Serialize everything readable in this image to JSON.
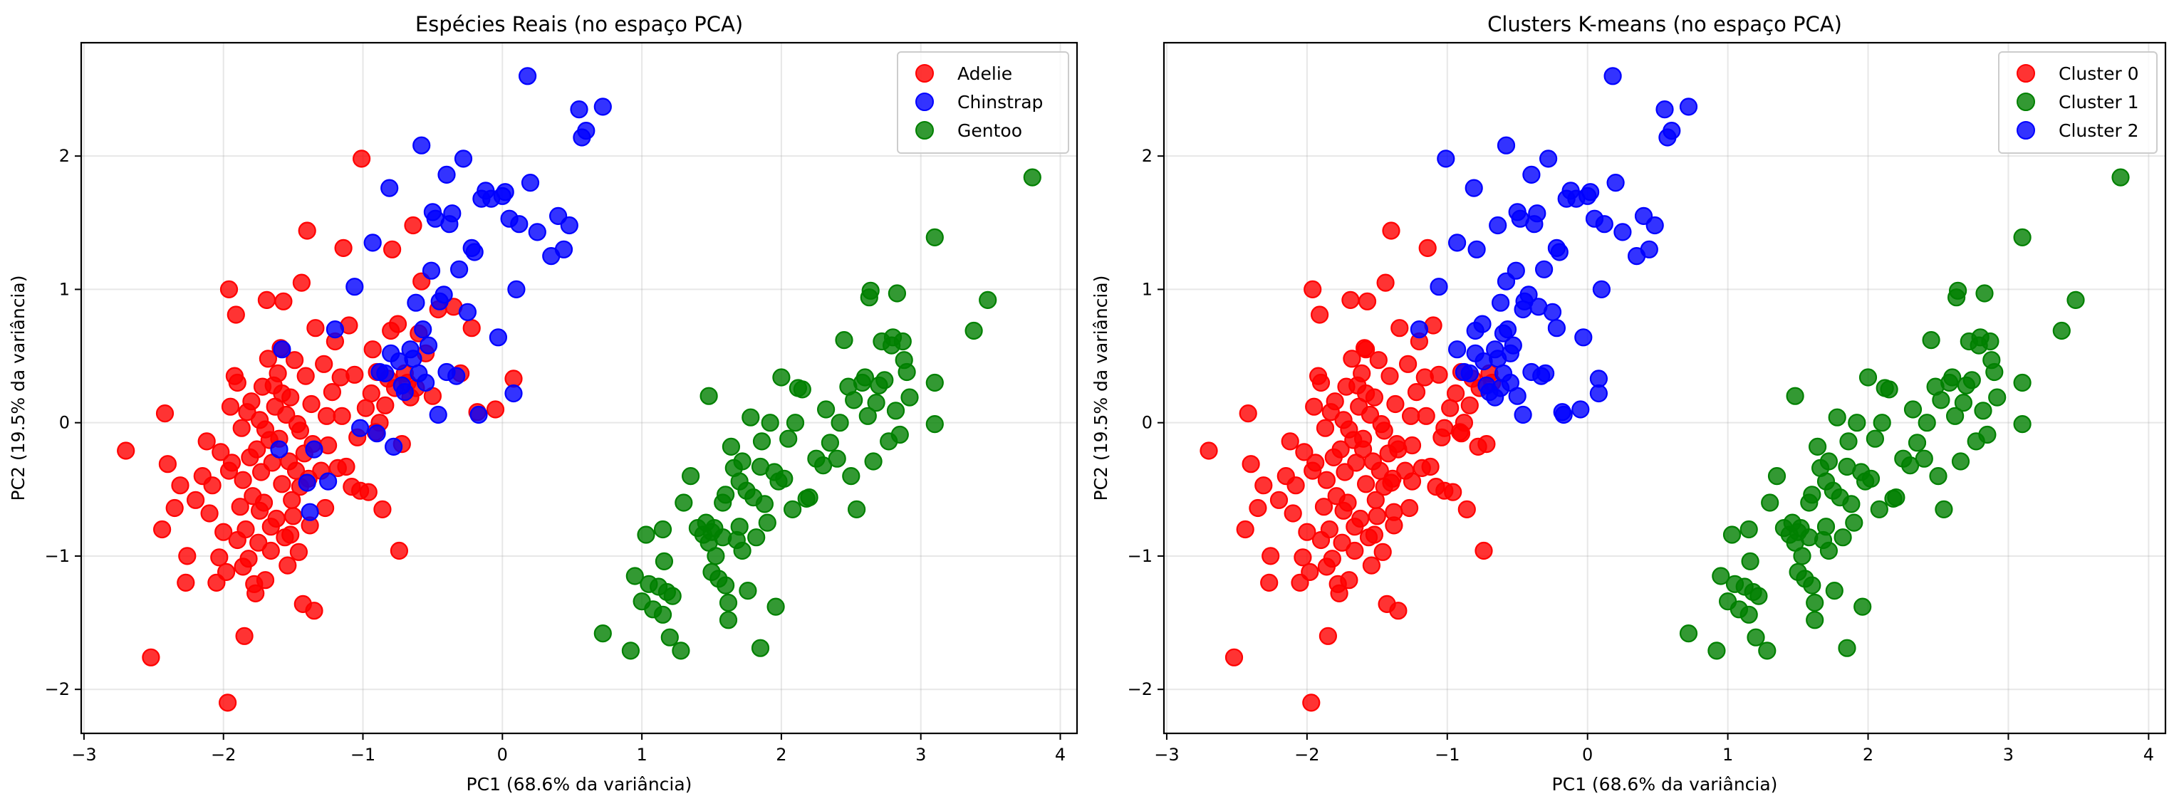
{
  "figure": {
    "description": "Two side-by-side PCA scatter plots of penguin data"
  },
  "chart_data": [
    {
      "type": "scatter",
      "title": "Espécies Reais (no espaço PCA)",
      "xlabel": "PC1 (68.6% da variância)",
      "ylabel": "PC2 (19.5% da variância)",
      "xlim": [
        -3.02,
        4.12
      ],
      "ylim": [
        -2.33,
        2.85
      ],
      "xticks": [
        -3,
        -2,
        -1,
        0,
        1,
        2,
        3,
        4
      ],
      "yticks": [
        -2,
        -1,
        0,
        1,
        2
      ],
      "grid": true,
      "legend_position": "top-right",
      "color_key": "species",
      "legend": [
        {
          "label": "Adelie",
          "key": "A",
          "color": "#ff0000"
        },
        {
          "label": "Chinstrap",
          "key": "C",
          "color": "#0000ff"
        },
        {
          "label": "Gentoo",
          "key": "G",
          "color": "#008000"
        }
      ]
    },
    {
      "type": "scatter",
      "title": "Clusters K-means (no espaço PCA)",
      "xlabel": "PC1 (68.6% da variância)",
      "ylabel": "PC2 (19.5% da variância)",
      "xlim": [
        -3.02,
        4.12
      ],
      "ylim": [
        -2.33,
        2.85
      ],
      "xticks": [
        -3,
        -2,
        -1,
        0,
        1,
        2,
        3,
        4
      ],
      "yticks": [
        -2,
        -1,
        0,
        1,
        2
      ],
      "grid": true,
      "legend_position": "top-right",
      "color_key": "cluster",
      "legend": [
        {
          "label": "Cluster 0",
          "key": 0,
          "color": "#ff0000"
        },
        {
          "label": "Cluster 1",
          "key": 1,
          "color": "#008000"
        },
        {
          "label": "Cluster 2",
          "key": 2,
          "color": "#0000ff"
        }
      ]
    }
  ],
  "points": [
    [
      -2.7,
      -0.21,
      "A",
      0
    ],
    [
      -2.52,
      -1.76,
      "A",
      0
    ],
    [
      -2.44,
      -0.8,
      "A",
      0
    ],
    [
      -2.42,
      0.07,
      "A",
      0
    ],
    [
      -2.4,
      -0.31,
      "A",
      0
    ],
    [
      -2.35,
      -0.64,
      "A",
      0
    ],
    [
      -2.31,
      -0.47,
      "A",
      0
    ],
    [
      -2.27,
      -1.2,
      "A",
      0
    ],
    [
      -2.26,
      -1.0,
      "A",
      0
    ],
    [
      -2.2,
      -0.58,
      "A",
      0
    ],
    [
      -2.15,
      -0.4,
      "A",
      0
    ],
    [
      -2.12,
      -0.14,
      "A",
      0
    ],
    [
      -2.08,
      -0.47,
      "A",
      0
    ],
    [
      -2.05,
      -1.2,
      "A",
      0
    ],
    [
      -2.03,
      -1.01,
      "A",
      0
    ],
    [
      -2.02,
      -0.22,
      "A",
      0
    ],
    [
      -2.0,
      -0.82,
      "A",
      0
    ],
    [
      -1.98,
      -1.12,
      "A",
      0
    ],
    [
      -1.97,
      -2.1,
      "A",
      0
    ],
    [
      -1.96,
      1.0,
      "A",
      0
    ],
    [
      -1.95,
      0.12,
      "A",
      0
    ],
    [
      -1.94,
      -0.3,
      "A",
      0
    ],
    [
      -1.92,
      0.35,
      "A",
      0
    ],
    [
      -1.91,
      0.81,
      "A",
      0
    ],
    [
      -1.9,
      -0.88,
      "A",
      0
    ],
    [
      -1.88,
      -0.63,
      "A",
      0
    ],
    [
      -1.87,
      -0.04,
      "A",
      0
    ],
    [
      -1.86,
      -0.43,
      "A",
      0
    ],
    [
      -1.85,
      -1.6,
      "A",
      0
    ],
    [
      -1.84,
      -0.8,
      "A",
      0
    ],
    [
      -1.83,
      0.08,
      "A",
      0
    ],
    [
      -1.82,
      -1.02,
      "A",
      0
    ],
    [
      -1.81,
      -0.26,
      "A",
      0
    ],
    [
      -1.8,
      0.16,
      "A",
      0
    ],
    [
      -1.79,
      -0.55,
      "A",
      0
    ],
    [
      -1.78,
      -1.21,
      "A",
      0
    ],
    [
      -1.77,
      -1.28,
      "A",
      0
    ],
    [
      -1.76,
      -0.2,
      "A",
      0
    ],
    [
      -1.75,
      -0.9,
      "A",
      0
    ],
    [
      -1.74,
      0.02,
      "A",
      0
    ],
    [
      -1.73,
      -0.37,
      "A",
      0
    ],
    [
      -1.72,
      0.27,
      "A",
      0
    ],
    [
      -1.71,
      -0.6,
      "A",
      0
    ],
    [
      -1.7,
      -0.05,
      "A",
      0
    ],
    [
      -1.69,
      0.92,
      "A",
      0
    ],
    [
      -1.68,
      0.48,
      "A",
      0
    ],
    [
      -1.67,
      -0.13,
      "A",
      0
    ],
    [
      -1.66,
      -0.96,
      "A",
      0
    ],
    [
      -1.65,
      -0.3,
      "A",
      0
    ],
    [
      -1.64,
      0.28,
      "A",
      0
    ],
    [
      -1.63,
      0.12,
      "A",
      0
    ],
    [
      -1.62,
      -0.72,
      "A",
      0
    ],
    [
      -1.61,
      0.37,
      "A",
      0
    ],
    [
      -1.6,
      -0.12,
      "A",
      0
    ],
    [
      -1.59,
      0.56,
      "A",
      0
    ],
    [
      -1.58,
      -0.46,
      "A",
      0
    ],
    [
      -1.57,
      0.91,
      "A",
      0
    ],
    [
      -1.56,
      -0.86,
      "A",
      0
    ],
    [
      -1.55,
      0.06,
      "A",
      0
    ],
    [
      -1.54,
      -1.07,
      "A",
      0
    ],
    [
      -1.53,
      -0.29,
      "A",
      0
    ],
    [
      -1.52,
      0.19,
      "A",
      0
    ],
    [
      -1.51,
      -0.58,
      "A",
      0
    ],
    [
      -1.5,
      -0.7,
      "A",
      0
    ],
    [
      -1.49,
      0.47,
      "A",
      0
    ],
    [
      -1.48,
      -0.36,
      "A",
      0
    ],
    [
      -1.47,
      -0.01,
      "A",
      0
    ],
    [
      -1.46,
      -0.97,
      "A",
      0
    ],
    [
      -1.45,
      -0.48,
      "A",
      0
    ],
    [
      -1.44,
      1.05,
      "A",
      0
    ],
    [
      -1.43,
      -1.36,
      "A",
      0
    ],
    [
      -1.42,
      -0.23,
      "A",
      0
    ],
    [
      -1.41,
      0.35,
      "A",
      0
    ],
    [
      -1.4,
      1.44,
      "A",
      0
    ],
    [
      -1.39,
      -0.42,
      "A",
      0
    ],
    [
      -1.38,
      -0.77,
      "A",
      0
    ],
    [
      -1.37,
      0.14,
      "A",
      0
    ],
    [
      -1.36,
      -0.16,
      "A",
      0
    ],
    [
      -1.35,
      -1.41,
      "A",
      0
    ],
    [
      -1.34,
      0.71,
      "A",
      0
    ],
    [
      -1.3,
      -0.36,
      "A",
      0
    ],
    [
      -1.28,
      0.44,
      "A",
      0
    ],
    [
      -1.27,
      -0.64,
      "A",
      0
    ],
    [
      -1.26,
      0.05,
      "A",
      0
    ],
    [
      -1.25,
      -0.17,
      "A",
      0
    ],
    [
      -1.22,
      0.23,
      "A",
      0
    ],
    [
      -1.2,
      0.61,
      "A",
      0
    ],
    [
      -1.18,
      -0.34,
      "A",
      0
    ],
    [
      -1.16,
      0.34,
      "A",
      0
    ],
    [
      -1.15,
      0.05,
      "A",
      0
    ],
    [
      -1.14,
      1.31,
      "A",
      0
    ],
    [
      -1.12,
      -0.33,
      "A",
      0
    ],
    [
      -1.1,
      0.73,
      "A",
      0
    ],
    [
      -1.08,
      -0.48,
      "A",
      0
    ],
    [
      -1.06,
      0.36,
      "A",
      0
    ],
    [
      -1.04,
      -0.11,
      "A",
      0
    ],
    [
      -1.02,
      -0.51,
      "A",
      0
    ],
    [
      -1.01,
      1.98,
      "A",
      2
    ],
    [
      -0.98,
      0.11,
      "A",
      0
    ],
    [
      -0.96,
      -0.52,
      "A",
      0
    ],
    [
      -0.94,
      0.22,
      "A",
      0
    ],
    [
      -0.93,
      0.55,
      "A",
      2
    ],
    [
      -0.91,
      -0.07,
      "A",
      0
    ],
    [
      -0.9,
      0.38,
      "A",
      0
    ],
    [
      -0.88,
      0.0,
      "A",
      0
    ],
    [
      -0.86,
      -0.65,
      "A",
      0
    ],
    [
      -0.84,
      0.13,
      "A",
      0
    ],
    [
      -0.82,
      0.33,
      "A",
      0
    ],
    [
      -0.8,
      0.69,
      "A",
      2
    ],
    [
      -0.79,
      1.3,
      "A",
      2
    ],
    [
      -0.77,
      0.26,
      "A",
      0
    ],
    [
      -0.75,
      0.74,
      "A",
      2
    ],
    [
      -0.74,
      -0.96,
      "A",
      0
    ],
    [
      -0.72,
      -0.16,
      "A",
      0
    ],
    [
      -0.7,
      0.37,
      "A",
      0
    ],
    [
      -0.68,
      0.3,
      "A",
      0
    ],
    [
      -0.66,
      0.19,
      "A",
      2
    ],
    [
      -0.64,
      1.48,
      "A",
      2
    ],
    [
      -0.62,
      0.26,
      "A",
      2
    ],
    [
      -0.6,
      0.67,
      "A",
      2
    ],
    [
      -0.58,
      1.06,
      "A",
      2
    ],
    [
      -0.55,
      0.52,
      "A",
      2
    ],
    [
      -0.5,
      0.2,
      "A",
      2
    ],
    [
      -0.46,
      0.85,
      "A",
      2
    ],
    [
      -0.35,
      0.87,
      "A",
      2
    ],
    [
      -0.3,
      0.37,
      "A",
      2
    ],
    [
      -0.22,
      0.71,
      "A",
      2
    ],
    [
      -0.18,
      0.08,
      "A",
      2
    ],
    [
      -0.05,
      0.1,
      "A",
      2
    ],
    [
      0.08,
      0.33,
      "A",
      2
    ],
    [
      -1.9,
      0.3,
      "A",
      0
    ],
    [
      -1.58,
      0.22,
      "A",
      0
    ],
    [
      -1.74,
      -0.66,
      "A",
      0
    ],
    [
      -1.66,
      -0.78,
      "A",
      0
    ],
    [
      -1.86,
      -1.08,
      "A",
      0
    ],
    [
      -1.52,
      -0.84,
      "A",
      0
    ],
    [
      -1.45,
      -0.06,
      "A",
      0
    ],
    [
      -2.1,
      -0.68,
      "A",
      0
    ],
    [
      -1.96,
      -0.36,
      "A",
      0
    ],
    [
      -1.7,
      -1.18,
      "A",
      0
    ],
    [
      -1.58,
      0.55,
      "C",
      0
    ],
    [
      -1.6,
      -0.2,
      "C",
      0
    ],
    [
      -1.4,
      -0.45,
      "C",
      0
    ],
    [
      -1.38,
      -0.67,
      "C",
      0
    ],
    [
      -1.25,
      -0.44,
      "C",
      0
    ],
    [
      -1.35,
      -0.2,
      "C",
      0
    ],
    [
      -1.2,
      0.7,
      "C",
      2
    ],
    [
      -1.06,
      1.02,
      "C",
      2
    ],
    [
      -1.02,
      -0.04,
      "C",
      0
    ],
    [
      -0.93,
      1.35,
      "C",
      2
    ],
    [
      -0.9,
      -0.08,
      "C",
      0
    ],
    [
      -0.84,
      0.37,
      "C",
      2
    ],
    [
      -0.81,
      1.76,
      "C",
      2
    ],
    [
      -0.8,
      0.52,
      "C",
      2
    ],
    [
      -0.78,
      -0.18,
      "C",
      0
    ],
    [
      -0.74,
      0.46,
      "C",
      2
    ],
    [
      -0.72,
      0.28,
      "C",
      2
    ],
    [
      -0.7,
      0.23,
      "C",
      2
    ],
    [
      -0.66,
      0.55,
      "C",
      2
    ],
    [
      -0.64,
      0.48,
      "C",
      2
    ],
    [
      -0.6,
      0.37,
      "C",
      2
    ],
    [
      -0.58,
      2.08,
      "C",
      2
    ],
    [
      -0.57,
      0.7,
      "C",
      2
    ],
    [
      -0.55,
      0.3,
      "C",
      2
    ],
    [
      -0.53,
      0.58,
      "C",
      2
    ],
    [
      -0.51,
      1.14,
      "C",
      2
    ],
    [
      -0.5,
      1.58,
      "C",
      2
    ],
    [
      -0.48,
      1.53,
      "C",
      2
    ],
    [
      -0.46,
      0.06,
      "C",
      2
    ],
    [
      -0.45,
      0.91,
      "C",
      2
    ],
    [
      -0.42,
      0.96,
      "C",
      2
    ],
    [
      -0.4,
      1.86,
      "C",
      2
    ],
    [
      -0.38,
      1.49,
      "C",
      2
    ],
    [
      -0.36,
      1.57,
      "C",
      2
    ],
    [
      -0.33,
      0.35,
      "C",
      2
    ],
    [
      -0.31,
      1.15,
      "C",
      2
    ],
    [
      -0.28,
      1.98,
      "C",
      2
    ],
    [
      -0.25,
      0.83,
      "C",
      2
    ],
    [
      -0.22,
      1.31,
      "C",
      2
    ],
    [
      -0.2,
      1.28,
      "C",
      2
    ],
    [
      -0.17,
      0.06,
      "C",
      2
    ],
    [
      -0.15,
      1.68,
      "C",
      2
    ],
    [
      -0.12,
      1.74,
      "C",
      2
    ],
    [
      -0.08,
      1.68,
      "C",
      2
    ],
    [
      -0.03,
      0.64,
      "C",
      2
    ],
    [
      0.0,
      1.7,
      "C",
      2
    ],
    [
      0.02,
      1.73,
      "C",
      2
    ],
    [
      0.05,
      1.53,
      "C",
      2
    ],
    [
      0.08,
      0.22,
      "C",
      2
    ],
    [
      0.1,
      1.0,
      "C",
      2
    ],
    [
      0.12,
      1.49,
      "C",
      2
    ],
    [
      0.2,
      1.8,
      "C",
      2
    ],
    [
      0.25,
      1.43,
      "C",
      2
    ],
    [
      0.35,
      1.25,
      "C",
      2
    ],
    [
      0.4,
      1.55,
      "C",
      2
    ],
    [
      0.44,
      1.3,
      "C",
      2
    ],
    [
      0.48,
      1.48,
      "C",
      2
    ],
    [
      0.18,
      2.6,
      "C",
      2
    ],
    [
      0.55,
      2.35,
      "C",
      2
    ],
    [
      0.57,
      2.14,
      "C",
      2
    ],
    [
      0.6,
      2.19,
      "C",
      2
    ],
    [
      0.72,
      2.37,
      "C",
      2
    ],
    [
      -0.62,
      0.9,
      "C",
      2
    ],
    [
      -0.4,
      0.38,
      "C",
      2
    ],
    [
      -0.88,
      0.38,
      "C",
      2
    ],
    [
      0.72,
      -1.58,
      "G",
      1
    ],
    [
      0.92,
      -1.71,
      "G",
      1
    ],
    [
      0.95,
      -1.15,
      "G",
      1
    ],
    [
      1.0,
      -1.34,
      "G",
      1
    ],
    [
      1.03,
      -0.84,
      "G",
      1
    ],
    [
      1.05,
      -1.21,
      "G",
      1
    ],
    [
      1.08,
      -1.4,
      "G",
      1
    ],
    [
      1.12,
      -1.23,
      "G",
      1
    ],
    [
      1.15,
      -0.8,
      "G",
      1
    ],
    [
      1.15,
      -1.44,
      "G",
      1
    ],
    [
      1.16,
      -1.04,
      "G",
      1
    ],
    [
      1.18,
      -1.27,
      "G",
      1
    ],
    [
      1.2,
      -1.61,
      "G",
      1
    ],
    [
      1.22,
      -1.3,
      "G",
      1
    ],
    [
      1.28,
      -1.71,
      "G",
      1
    ],
    [
      1.3,
      -0.6,
      "G",
      1
    ],
    [
      1.4,
      -0.79,
      "G",
      1
    ],
    [
      1.44,
      -0.84,
      "G",
      1
    ],
    [
      1.46,
      -0.75,
      "G",
      1
    ],
    [
      1.48,
      -0.9,
      "G",
      1
    ],
    [
      1.48,
      0.2,
      "G",
      1
    ],
    [
      1.5,
      -0.82,
      "G",
      1
    ],
    [
      1.5,
      -1.12,
      "G",
      1
    ],
    [
      1.52,
      -0.79,
      "G",
      1
    ],
    [
      1.55,
      -1.17,
      "G",
      1
    ],
    [
      1.58,
      -0.6,
      "G",
      1
    ],
    [
      1.58,
      -0.86,
      "G",
      1
    ],
    [
      1.6,
      -0.54,
      "G",
      1
    ],
    [
      1.6,
      -1.22,
      "G",
      1
    ],
    [
      1.62,
      -1.35,
      "G",
      1
    ],
    [
      1.62,
      -1.48,
      "G",
      1
    ],
    [
      1.64,
      -0.18,
      "G",
      1
    ],
    [
      1.66,
      -0.34,
      "G",
      1
    ],
    [
      1.68,
      -0.88,
      "G",
      1
    ],
    [
      1.7,
      -0.78,
      "G",
      1
    ],
    [
      1.72,
      -0.29,
      "G",
      1
    ],
    [
      1.72,
      -0.96,
      "G",
      1
    ],
    [
      1.75,
      -0.51,
      "G",
      1
    ],
    [
      1.76,
      -1.26,
      "G",
      1
    ],
    [
      1.78,
      0.04,
      "G",
      1
    ],
    [
      1.8,
      -0.56,
      "G",
      1
    ],
    [
      1.82,
      -0.86,
      "G",
      1
    ],
    [
      1.85,
      -0.33,
      "G",
      1
    ],
    [
      1.85,
      -1.69,
      "G",
      1
    ],
    [
      1.86,
      -0.14,
      "G",
      1
    ],
    [
      1.88,
      -0.61,
      "G",
      1
    ],
    [
      1.9,
      -0.75,
      "G",
      1
    ],
    [
      1.92,
      0.0,
      "G",
      1
    ],
    [
      1.95,
      -0.37,
      "G",
      1
    ],
    [
      1.96,
      -1.38,
      "G",
      1
    ],
    [
      2.0,
      0.34,
      "G",
      1
    ],
    [
      2.02,
      -0.42,
      "G",
      1
    ],
    [
      2.05,
      -0.12,
      "G",
      1
    ],
    [
      2.08,
      -0.65,
      "G",
      1
    ],
    [
      2.1,
      0.0,
      "G",
      1
    ],
    [
      2.12,
      0.26,
      "G",
      1
    ],
    [
      2.15,
      0.25,
      "G",
      1
    ],
    [
      2.18,
      -0.57,
      "G",
      1
    ],
    [
      2.2,
      -0.56,
      "G",
      1
    ],
    [
      2.25,
      -0.27,
      "G",
      1
    ],
    [
      2.3,
      -0.32,
      "G",
      1
    ],
    [
      2.32,
      0.1,
      "G",
      1
    ],
    [
      2.35,
      -0.15,
      "G",
      1
    ],
    [
      2.42,
      0.0,
      "G",
      1
    ],
    [
      2.45,
      0.62,
      "G",
      1
    ],
    [
      2.48,
      0.27,
      "G",
      1
    ],
    [
      2.5,
      -0.4,
      "G",
      1
    ],
    [
      2.52,
      0.17,
      "G",
      1
    ],
    [
      2.54,
      -0.65,
      "G",
      1
    ],
    [
      2.58,
      0.3,
      "G",
      1
    ],
    [
      2.6,
      0.34,
      "G",
      1
    ],
    [
      2.62,
      0.05,
      "G",
      1
    ],
    [
      2.63,
      0.94,
      "G",
      1
    ],
    [
      2.64,
      0.99,
      "G",
      1
    ],
    [
      2.66,
      -0.29,
      "G",
      1
    ],
    [
      2.68,
      0.15,
      "G",
      1
    ],
    [
      2.7,
      0.28,
      "G",
      1
    ],
    [
      2.72,
      0.61,
      "G",
      1
    ],
    [
      2.74,
      0.32,
      "G",
      1
    ],
    [
      2.77,
      -0.14,
      "G",
      1
    ],
    [
      2.79,
      0.58,
      "G",
      1
    ],
    [
      2.8,
      0.64,
      "G",
      1
    ],
    [
      2.82,
      0.09,
      "G",
      1
    ],
    [
      2.83,
      0.97,
      "G",
      1
    ],
    [
      2.85,
      -0.09,
      "G",
      1
    ],
    [
      2.87,
      0.61,
      "G",
      1
    ],
    [
      2.88,
      0.47,
      "G",
      1
    ],
    [
      2.9,
      0.38,
      "G",
      1
    ],
    [
      2.92,
      0.19,
      "G",
      1
    ],
    [
      3.1,
      1.39,
      "G",
      1
    ],
    [
      3.1,
      0.3,
      "G",
      1
    ],
    [
      3.1,
      -0.01,
      "G",
      1
    ],
    [
      3.38,
      0.69,
      "G",
      1
    ],
    [
      3.48,
      0.92,
      "G",
      1
    ],
    [
      3.8,
      1.84,
      "G",
      1
    ],
    [
      1.98,
      -0.44,
      "G",
      1
    ],
    [
      1.35,
      -0.4,
      "G",
      1
    ],
    [
      1.7,
      -0.44,
      "G",
      1
    ],
    [
      2.4,
      -0.27,
      "G",
      1
    ],
    [
      1.53,
      -1.0,
      "G",
      1
    ]
  ]
}
